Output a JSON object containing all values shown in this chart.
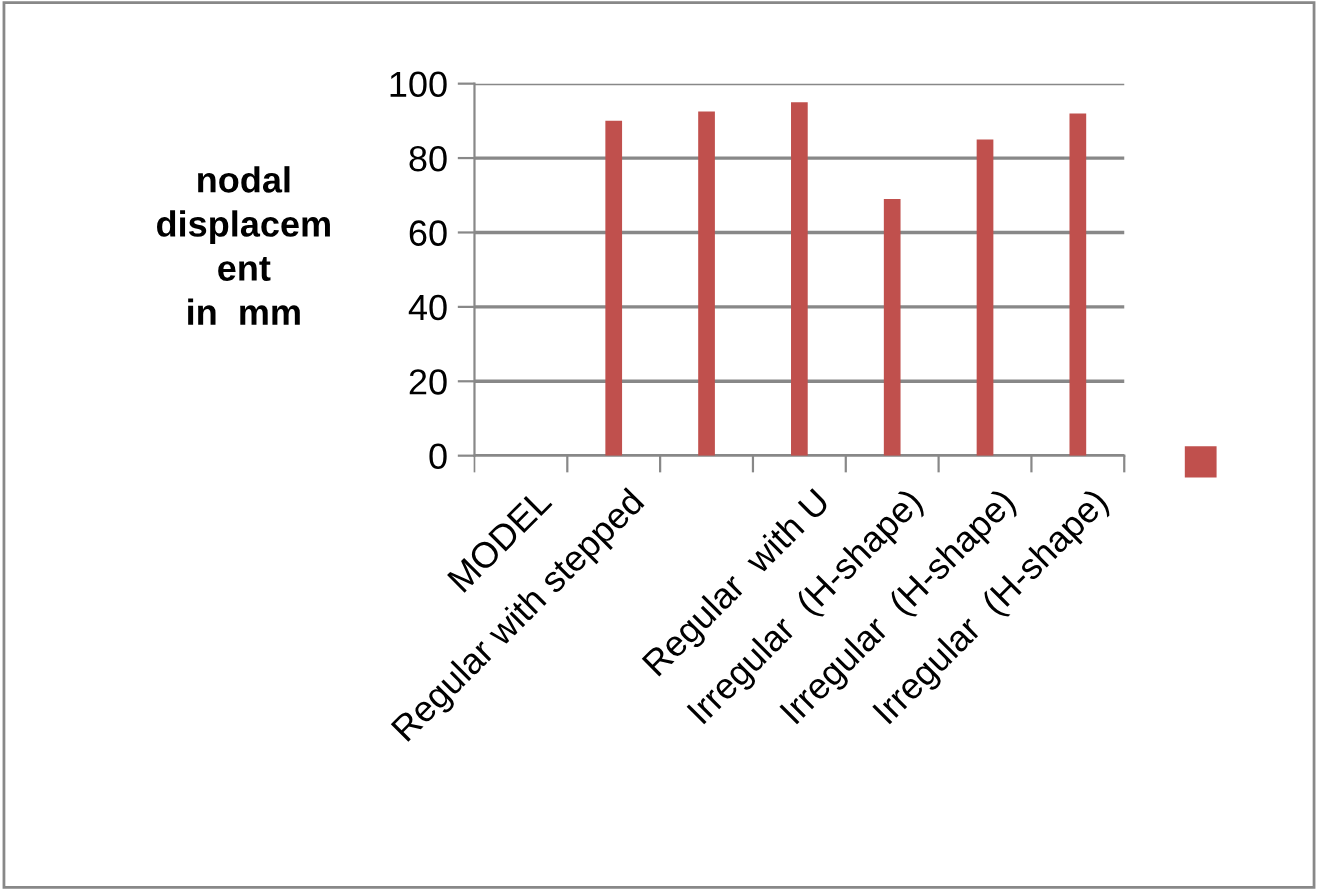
{
  "chart_data": {
    "type": "bar",
    "ylabel": "nodal\ndisplacem\nent\nin  mm",
    "categories": [
      "MODEL",
      "Regular with stepped",
      null,
      "Regular  with U",
      "Irregular  (H-shape)",
      "Irregular  (H-shape)",
      "Irregular  (H-shape)"
    ],
    "series": [
      {
        "color": "#c0504d",
        "values": [
          null,
          90,
          92.5,
          95,
          69,
          85,
          92
        ]
      }
    ],
    "ylim": [
      0,
      100
    ],
    "yticks": [
      0,
      20,
      40,
      60,
      80,
      100
    ],
    "grid": "y"
  }
}
